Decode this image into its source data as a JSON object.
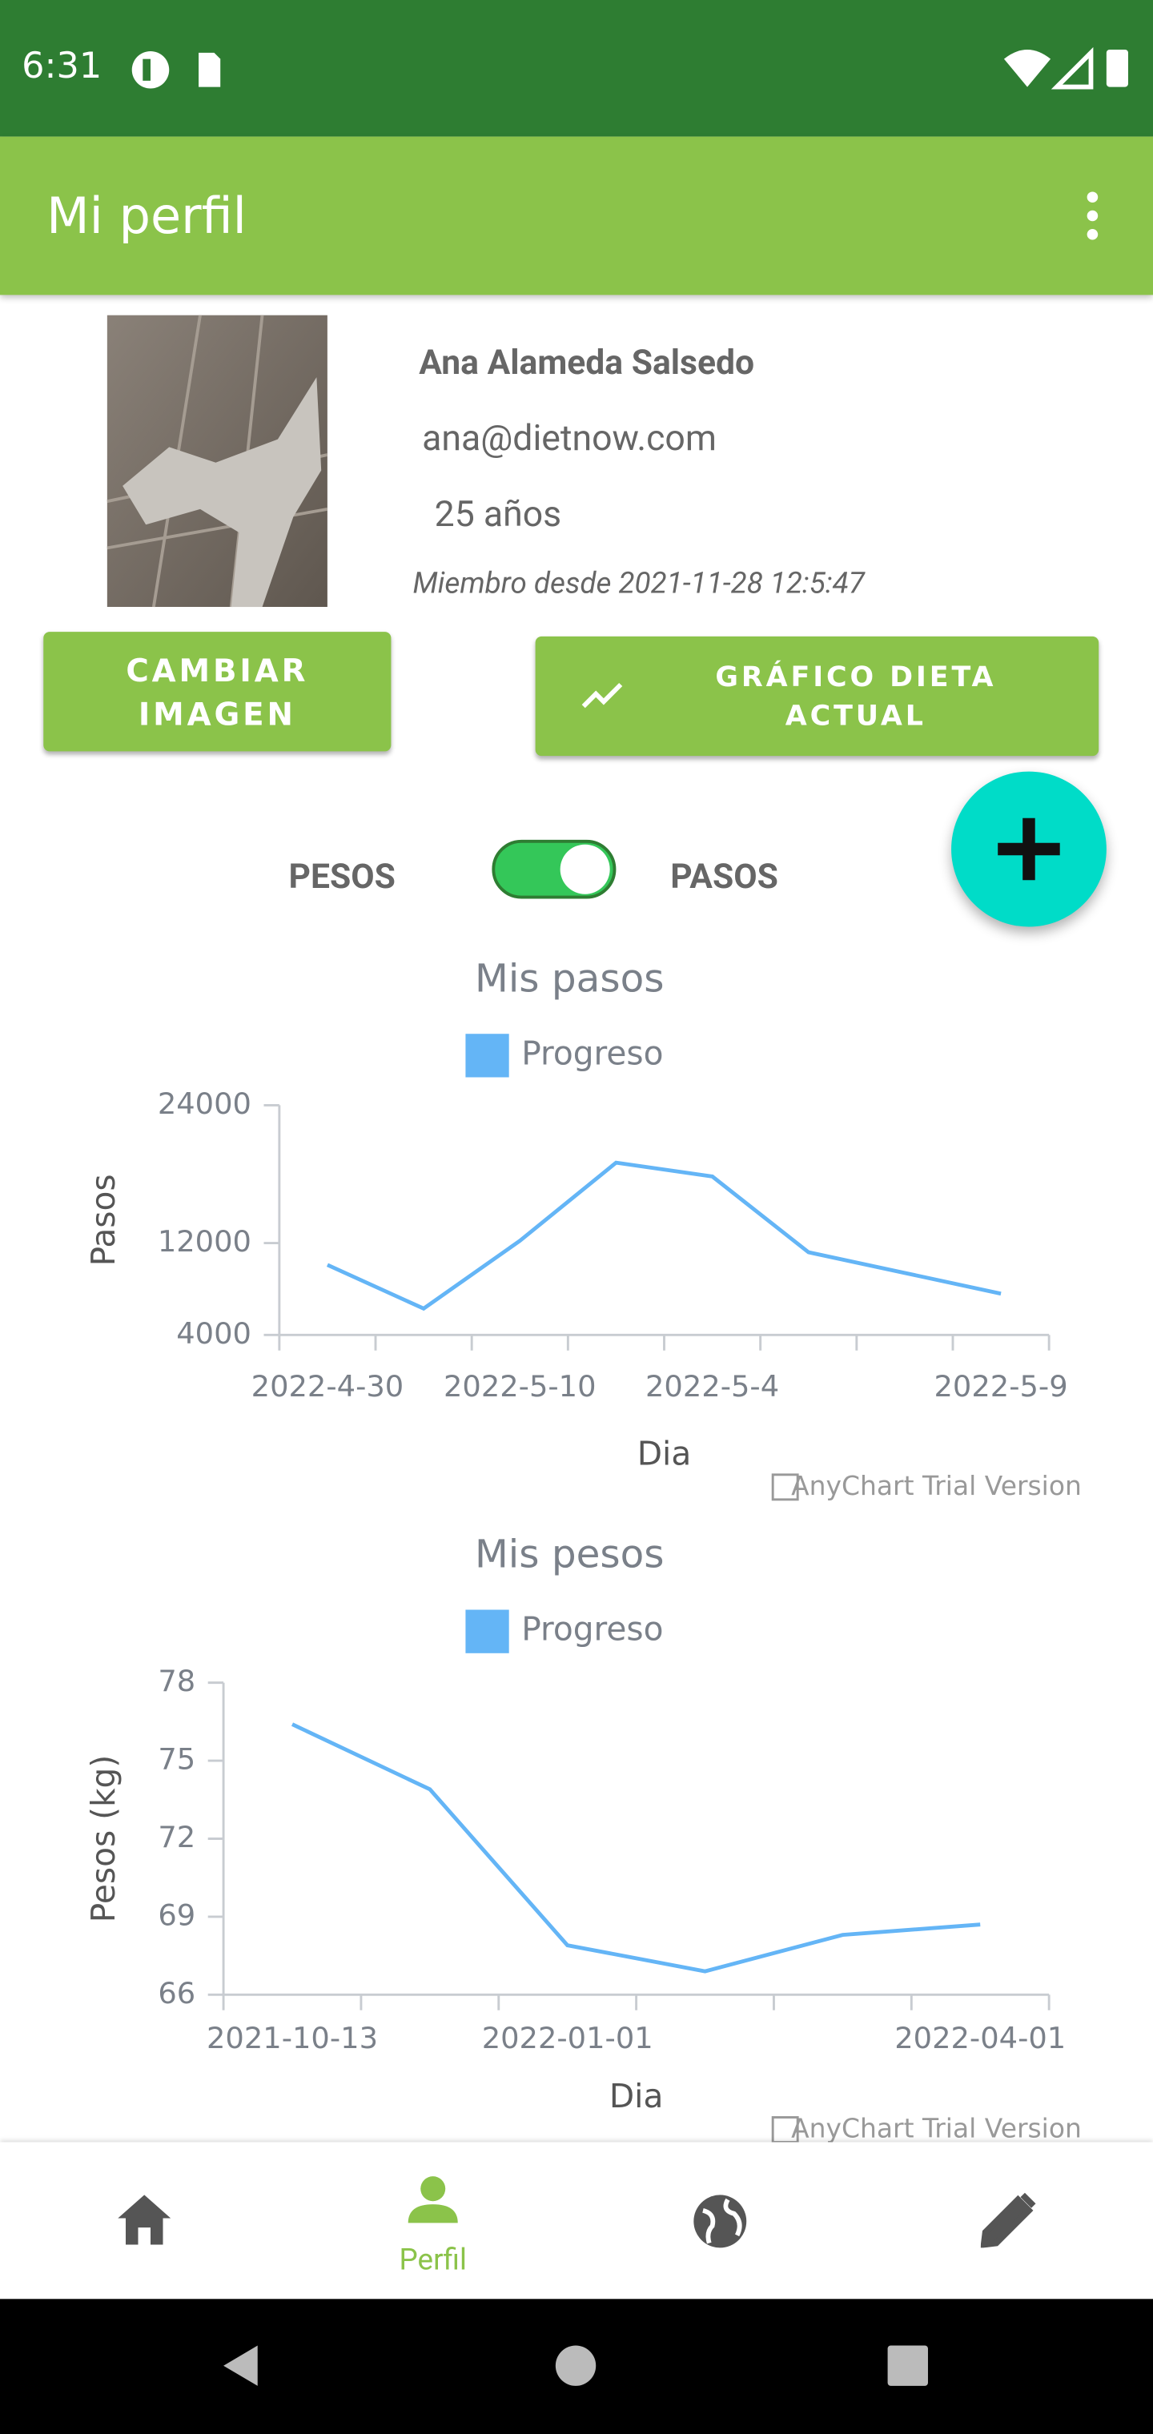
{
  "status_bar": {
    "time": "6:31"
  },
  "app_bar": {
    "title": "Mi perfil"
  },
  "profile": {
    "name": "Ana Alameda Salsedo",
    "email": "ana@dietnow.com",
    "age": "25 años",
    "member_since": "Miembro desde 2021-11-28 12:5:47"
  },
  "buttons": {
    "change_image": "CAMBIAR IMAGEN",
    "diet_chart": "GRÁFICO DIETA ACTUAL"
  },
  "toggle": {
    "left": "PESOS",
    "right": "PASOS"
  },
  "charts": [
    {
      "type": "line",
      "title": "Mis pasos",
      "ylabel": "Pasos",
      "xlabel": "Dia",
      "categories": [
        "2022-4-30",
        null,
        "2022-5-10",
        null,
        "2022-5-4",
        null,
        null,
        "2022-5-9"
      ],
      "series": [
        {
          "name": "Progreso",
          "color": "#64b5f6",
          "values": [
            10100,
            6300,
            12200,
            19000,
            17800,
            11200,
            9400,
            7600
          ]
        }
      ],
      "ylim": [
        4000,
        24000
      ],
      "yticks": [
        4000,
        12000,
        24000
      ],
      "watermark": "AnyChart Trial Version"
    },
    {
      "type": "line",
      "title": "Mis pesos",
      "ylabel": "Pesos (kg)",
      "xlabel": "Dia",
      "categories": [
        "2021-10-13",
        null,
        "2022-01-01",
        null,
        null,
        "2022-04-01"
      ],
      "series": [
        {
          "name": "Progreso",
          "color": "#64b5f6",
          "values": [
            76.4,
            73.9,
            67.9,
            66.9,
            68.3,
            68.7
          ]
        }
      ],
      "ylim": [
        66,
        78
      ],
      "yticks": [
        66,
        69,
        72,
        75,
        78
      ],
      "watermark": "AnyChart Trial Version"
    }
  ],
  "bottom_nav": {
    "selected": "Perfil"
  }
}
